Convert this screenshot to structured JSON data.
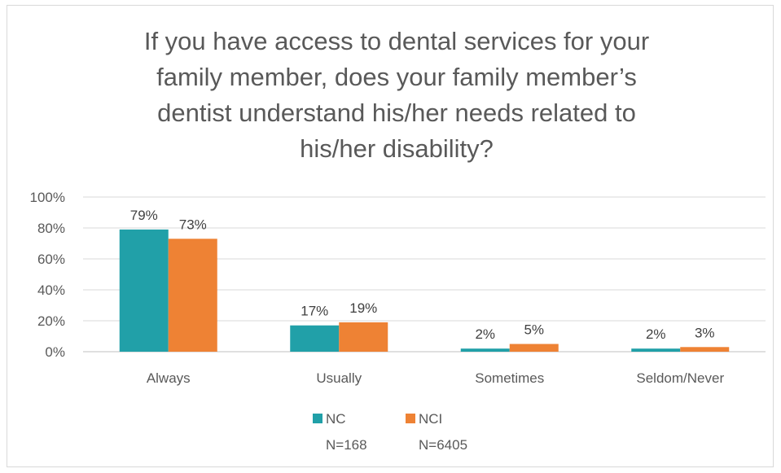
{
  "chart_data": {
    "type": "bar",
    "title_lines": [
      "If you have access to dental services for your",
      "family member, does your family member’s",
      "dentist understand his/her needs related to",
      "his/her disability?"
    ],
    "categories": [
      "Always",
      "Usually",
      "Sometimes",
      "Seldom/Never"
    ],
    "series": [
      {
        "name": "NC",
        "sample": "N=168",
        "values": [
          79,
          17,
          2,
          2
        ],
        "labels": [
          "79%",
          "17%",
          "2%",
          "2%"
        ],
        "color": "#21a0a8"
      },
      {
        "name": "NCI",
        "sample": "N=6405",
        "values": [
          73,
          19,
          5,
          3
        ],
        "labels": [
          "73%",
          "19%",
          "5%",
          "3%"
        ],
        "color": "#ee8234"
      }
    ],
    "ylim": [
      0,
      100
    ],
    "yticks": [
      "0%",
      "20%",
      "40%",
      "60%",
      "80%",
      "100%"
    ],
    "grid": true,
    "legend_position": "bottom"
  }
}
